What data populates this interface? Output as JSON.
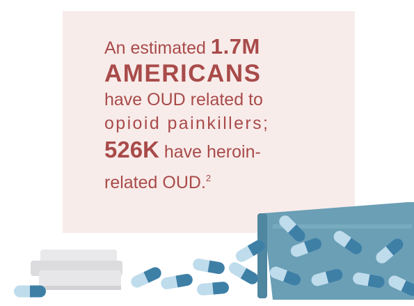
{
  "stat": {
    "line1_prefix": "An estimated ",
    "line1_number": "1.7M",
    "line2": "AMERICANS",
    "line3": "have OUD related to",
    "line4": "opioid painkillers;",
    "line5_number": "526K",
    "line5_suffix": " have heroin-",
    "line6": "related OUD.",
    "footnote": "2"
  },
  "colors": {
    "panel_background": "#f8ecea",
    "text": "#a84b4a",
    "bottle": "#6a9fb5",
    "cap": "#e6e6e8",
    "pill_dark": "#3e7fa6",
    "pill_light": "#bfdcec"
  },
  "icons": [
    "pill-bottle-icon",
    "bottle-cap-icon",
    "capsule-icon"
  ]
}
